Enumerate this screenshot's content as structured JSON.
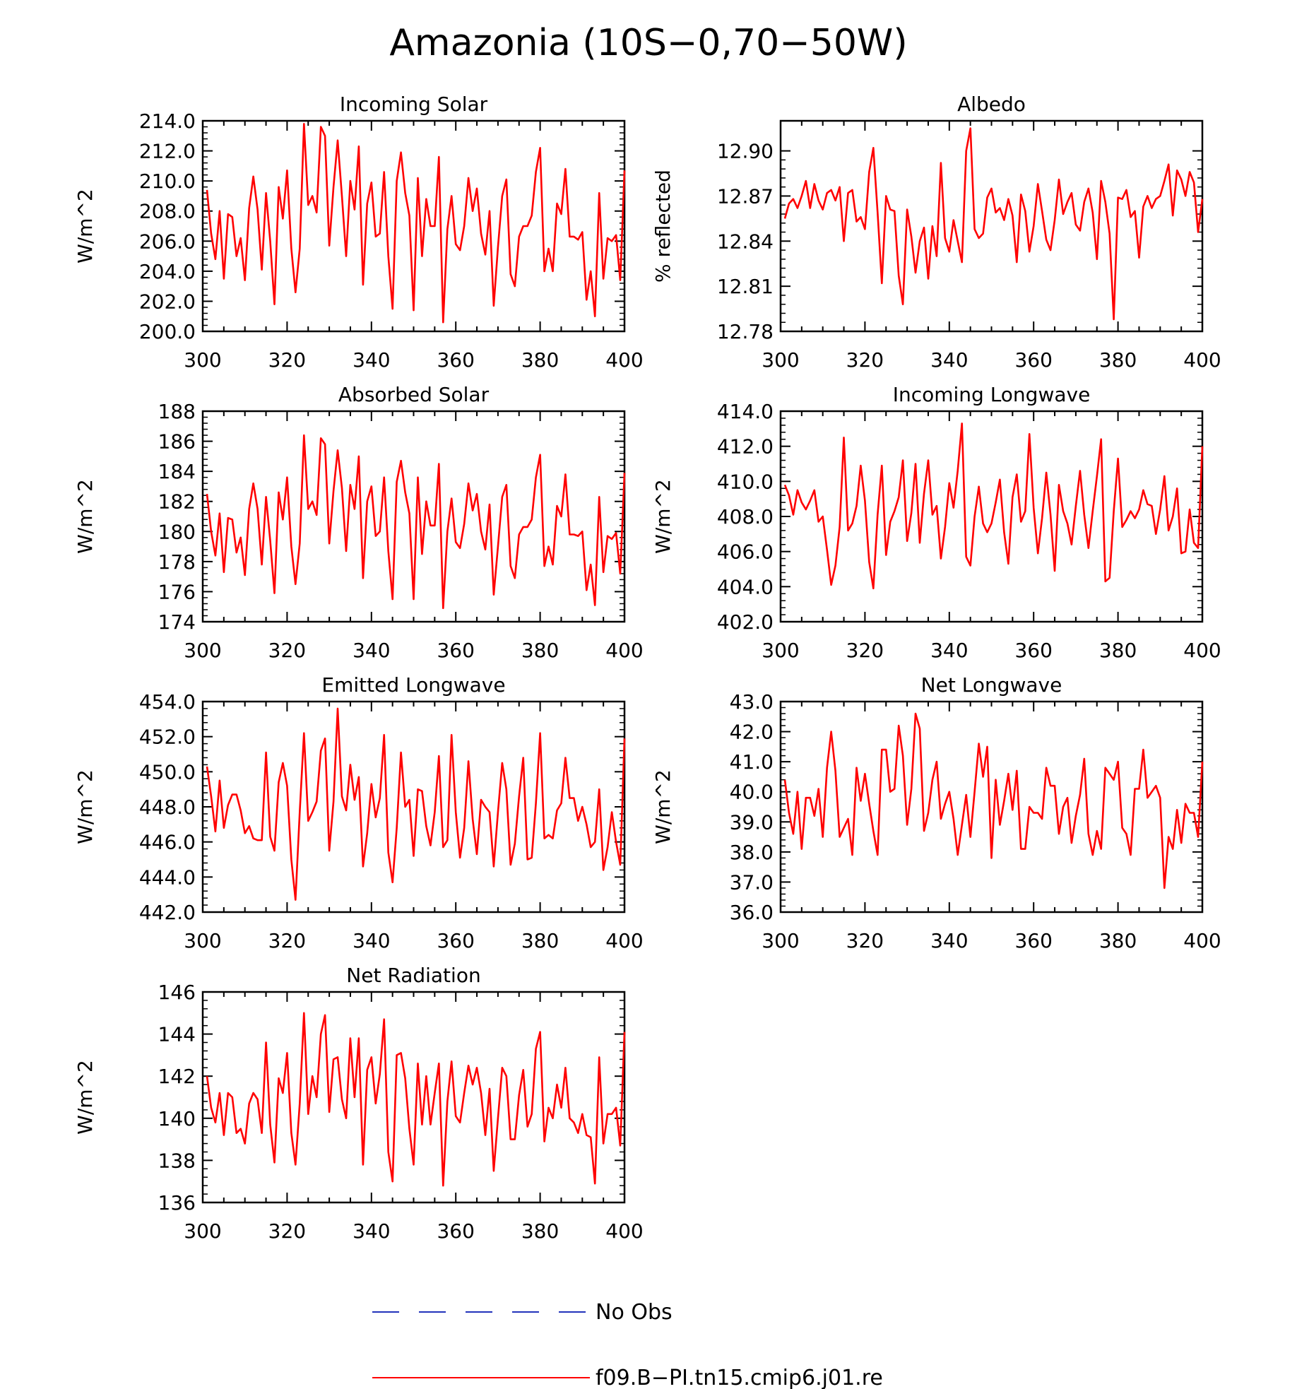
{
  "figure": {
    "title": "Amazonia (10S−0,70−50W)"
  },
  "legend": {
    "placement": "bottom",
    "entries": [
      {
        "label": "No Obs",
        "color": "#2233bb",
        "dashed": true
      },
      {
        "label": "f09.B−PI.tn15.cmip6.j01.re",
        "color": "#ff0000",
        "dashed": false
      }
    ]
  },
  "chart_data": [
    {
      "type": "line",
      "title": "Incoming Solar",
      "ylabel": "W/m^2",
      "xlim": [
        300,
        400
      ],
      "ylim": [
        200,
        214
      ],
      "xticks": [
        "300",
        "320",
        "340",
        "360",
        "380",
        "400"
      ],
      "yticks": [
        "200.0",
        "202.0",
        "204.0",
        "206.0",
        "208.0",
        "210.0",
        "212.0",
        "214.0"
      ],
      "series": [
        {
          "color": "#ff0000",
          "start_x": 301,
          "values": [
            209.4,
            206.5,
            204.8,
            208.0,
            203.5,
            207.8,
            207.6,
            205.0,
            206.2,
            203.4,
            208.2,
            210.3,
            208.1,
            204.1,
            209.2,
            206.0,
            201.8,
            209.6,
            207.5,
            210.7,
            205.5,
            202.6,
            205.5,
            213.8,
            208.4,
            209.0,
            207.9,
            213.6,
            213.0,
            205.7,
            209.6,
            212.7,
            209.0,
            205.0,
            210.0,
            208.1,
            212.3,
            203.1,
            208.5,
            209.9,
            206.3,
            206.5,
            210.6,
            205.0,
            201.5,
            210.0,
            211.9,
            209.2,
            207.7,
            201.4,
            210.2,
            205.0,
            208.8,
            207.0,
            207.0,
            211.6,
            200.6,
            206.8,
            209.0,
            205.8,
            205.4,
            207.0,
            210.2,
            208.0,
            209.5,
            206.5,
            205.1,
            208.0,
            201.7,
            205.6,
            209.0,
            210.1,
            203.8,
            203.0,
            206.3,
            207.0,
            207.0,
            207.7,
            210.6,
            212.2,
            204.0,
            205.5,
            204.0,
            208.5,
            207.8,
            210.8,
            206.3,
            206.3,
            206.1,
            206.6,
            202.1,
            204.0,
            201.0,
            209.2,
            203.5,
            206.2,
            206.0,
            206.4,
            203.4,
            210.7
          ]
        }
      ]
    },
    {
      "type": "line",
      "title": "Albedo",
      "ylabel": "% reflected",
      "xlim": [
        300,
        400
      ],
      "ylim": [
        12.78,
        12.92
      ],
      "xticks": [
        "300",
        "320",
        "340",
        "360",
        "380",
        "400"
      ],
      "yticks": [
        "12.78",
        "12.81",
        "12.84",
        "12.87",
        "12.90"
      ],
      "series": [
        {
          "color": "#ff0000",
          "start_x": 301,
          "values": [
            12.855,
            12.865,
            12.868,
            12.862,
            12.87,
            12.88,
            12.862,
            12.878,
            12.867,
            12.861,
            12.872,
            12.874,
            12.867,
            12.876,
            12.84,
            12.872,
            12.874,
            12.853,
            12.856,
            12.848,
            12.886,
            12.902,
            12.859,
            12.812,
            12.87,
            12.861,
            12.86,
            12.817,
            12.798,
            12.861,
            12.843,
            12.819,
            12.84,
            12.849,
            12.815,
            12.85,
            12.83,
            12.892,
            12.842,
            12.833,
            12.854,
            12.84,
            12.826,
            12.9,
            12.915,
            12.848,
            12.842,
            12.845,
            12.869,
            12.875,
            12.859,
            12.862,
            12.854,
            12.868,
            12.857,
            12.826,
            12.871,
            12.86,
            12.833,
            12.85,
            12.878,
            12.86,
            12.841,
            12.834,
            12.854,
            12.881,
            12.858,
            12.866,
            12.872,
            12.851,
            12.847,
            12.866,
            12.875,
            12.859,
            12.828,
            12.88,
            12.866,
            12.845,
            12.788,
            12.869,
            12.868,
            12.874,
            12.856,
            12.86,
            12.829,
            12.863,
            12.87,
            12.862,
            12.868,
            12.87,
            12.88,
            12.891,
            12.857,
            12.887,
            12.881,
            12.87,
            12.886,
            12.879,
            12.846,
            12.868
          ]
        }
      ]
    },
    {
      "type": "line",
      "title": "Absorbed Solar",
      "ylabel": "W/m^2",
      "xlim": [
        300,
        400
      ],
      "ylim": [
        174,
        188
      ],
      "xticks": [
        "300",
        "320",
        "340",
        "360",
        "380",
        "400"
      ],
      "yticks": [
        "174",
        "176",
        "178",
        "180",
        "182",
        "184",
        "186",
        "188"
      ],
      "series": [
        {
          "color": "#ff0000",
          "start_x": 301,
          "values": [
            182.5,
            180.0,
            178.4,
            181.2,
            177.3,
            180.9,
            180.8,
            178.6,
            179.6,
            177.1,
            181.5,
            183.2,
            181.5,
            177.8,
            182.3,
            179.4,
            175.9,
            182.6,
            180.8,
            183.6,
            179.0,
            176.5,
            179.2,
            186.4,
            181.5,
            182.0,
            181.1,
            186.2,
            185.8,
            179.2,
            182.7,
            185.4,
            182.9,
            178.7,
            183.1,
            181.5,
            185.0,
            176.9,
            182.0,
            183.0,
            179.7,
            180.0,
            183.6,
            178.7,
            175.5,
            183.3,
            184.7,
            182.6,
            181.2,
            175.5,
            183.6,
            178.5,
            182.0,
            180.4,
            180.4,
            184.5,
            174.9,
            180.0,
            182.2,
            179.3,
            178.9,
            180.5,
            183.2,
            181.4,
            182.5,
            180.0,
            178.8,
            181.8,
            175.8,
            179.0,
            182.3,
            183.1,
            177.7,
            176.9,
            179.8,
            180.3,
            180.3,
            180.8,
            183.6,
            185.1,
            177.7,
            179.0,
            177.8,
            181.7,
            181.0,
            183.8,
            179.8,
            179.8,
            179.7,
            180.0,
            176.1,
            177.8,
            175.1,
            182.3,
            177.3,
            179.7,
            179.5,
            179.9,
            177.2,
            183.9
          ]
        }
      ]
    },
    {
      "type": "line",
      "title": "Incoming Longwave",
      "ylabel": "W/m^2",
      "xlim": [
        300,
        400
      ],
      "ylim": [
        402,
        414
      ],
      "xticks": [
        "300",
        "320",
        "340",
        "360",
        "380",
        "400"
      ],
      "yticks": [
        "402.0",
        "404.0",
        "406.0",
        "408.0",
        "410.0",
        "412.0",
        "414.0"
      ],
      "series": [
        {
          "color": "#ff0000",
          "start_x": 301,
          "values": [
            409.8,
            409.2,
            408.1,
            409.5,
            408.8,
            408.4,
            408.9,
            409.5,
            407.7,
            408.0,
            406.1,
            404.1,
            405.2,
            407.4,
            412.5,
            407.2,
            407.6,
            408.6,
            410.9,
            408.9,
            405.4,
            403.9,
            408.1,
            410.9,
            405.8,
            407.7,
            408.3,
            409.1,
            411.2,
            406.6,
            408.2,
            411.0,
            406.5,
            409.3,
            411.2,
            408.1,
            408.6,
            405.6,
            407.4,
            409.9,
            408.5,
            410.6,
            413.3,
            405.7,
            405.2,
            408.0,
            409.7,
            407.6,
            407.1,
            407.6,
            408.8,
            410.1,
            407.1,
            405.3,
            409.1,
            410.4,
            407.7,
            408.3,
            412.7,
            408.5,
            405.9,
            407.9,
            410.5,
            408.1,
            404.9,
            409.8,
            408.3,
            407.6,
            406.4,
            408.6,
            410.6,
            408.1,
            406.2,
            408.3,
            410.3,
            412.4,
            404.3,
            404.5,
            408.3,
            411.3,
            407.4,
            407.8,
            408.3,
            407.9,
            408.4,
            409.5,
            408.7,
            408.6,
            407.0,
            408.4,
            410.3,
            407.2,
            408.0,
            409.6,
            405.9,
            406.0,
            408.4,
            406.5,
            406.2,
            412.0
          ]
        }
      ]
    },
    {
      "type": "line",
      "title": "Emitted Longwave",
      "ylabel": "W/m^2",
      "xlim": [
        300,
        400
      ],
      "ylim": [
        442,
        454
      ],
      "xticks": [
        "300",
        "320",
        "340",
        "360",
        "380",
        "400"
      ],
      "yticks": [
        "442.0",
        "444.0",
        "446.0",
        "448.0",
        "450.0",
        "452.0",
        "454.0"
      ],
      "series": [
        {
          "color": "#ff0000",
          "start_x": 301,
          "values": [
            450.3,
            448.6,
            446.6,
            449.5,
            446.8,
            448.1,
            448.7,
            448.7,
            447.8,
            446.5,
            446.9,
            446.2,
            446.1,
            446.1,
            451.1,
            446.3,
            445.5,
            449.4,
            450.5,
            449.2,
            445.0,
            442.7,
            447.7,
            452.2,
            447.2,
            447.7,
            448.3,
            451.2,
            451.9,
            445.5,
            448.3,
            453.6,
            448.6,
            447.8,
            450.4,
            448.4,
            449.7,
            444.6,
            446.5,
            449.3,
            447.4,
            448.5,
            452.1,
            445.4,
            443.7,
            446.8,
            451.1,
            448.0,
            448.4,
            445.2,
            449.0,
            448.9,
            446.9,
            445.8,
            447.7,
            450.9,
            445.7,
            446.1,
            452.1,
            447.7,
            445.1,
            446.8,
            450.6,
            447.3,
            445.3,
            448.4,
            448.0,
            447.7,
            444.6,
            447.7,
            450.5,
            449.0,
            444.7,
            445.9,
            448.6,
            450.8,
            445.0,
            445.1,
            448.2,
            452.2,
            446.2,
            446.4,
            446.2,
            447.8,
            448.2,
            450.8,
            448.5,
            448.5,
            447.2,
            448.0,
            447.0,
            445.7,
            446.0,
            449.0,
            444.4,
            445.7,
            447.7,
            446.0,
            444.7,
            451.9
          ]
        }
      ]
    },
    {
      "type": "line",
      "title": "Net Longwave",
      "ylabel": "W/m^2",
      "xlim": [
        300,
        400
      ],
      "ylim": [
        36,
        43
      ],
      "xticks": [
        "300",
        "320",
        "340",
        "360",
        "380",
        "400"
      ],
      "yticks": [
        "36.0",
        "37.0",
        "38.0",
        "39.0",
        "40.0",
        "41.0",
        "42.0",
        "43.0"
      ],
      "series": [
        {
          "color": "#ff0000",
          "start_x": 301,
          "values": [
            40.4,
            39.3,
            38.6,
            40.0,
            38.1,
            39.8,
            39.8,
            39.2,
            40.1,
            38.5,
            40.8,
            42.0,
            40.7,
            38.5,
            38.8,
            39.1,
            37.9,
            40.8,
            39.7,
            40.6,
            39.6,
            38.7,
            37.9,
            41.4,
            41.4,
            40.0,
            40.1,
            42.2,
            41.2,
            38.9,
            40.1,
            42.6,
            42.1,
            38.7,
            39.3,
            40.4,
            41.0,
            39.1,
            39.6,
            40.0,
            39.1,
            37.9,
            38.9,
            39.9,
            38.5,
            40.0,
            41.6,
            40.5,
            41.5,
            37.8,
            40.4,
            38.9,
            39.7,
            40.6,
            39.4,
            40.7,
            38.1,
            38.1,
            39.5,
            39.3,
            39.3,
            39.1,
            40.8,
            40.2,
            40.2,
            38.6,
            39.5,
            39.8,
            38.3,
            39.2,
            39.9,
            41.1,
            38.6,
            37.9,
            38.7,
            38.1,
            40.8,
            40.6,
            40.4,
            41.0,
            38.8,
            38.6,
            37.9,
            40.1,
            40.1,
            41.4,
            39.8,
            40.0,
            40.2,
            39.8,
            36.8,
            38.5,
            38.1,
            39.4,
            38.3,
            39.6,
            39.3,
            39.3,
            38.5,
            41.0
          ]
        }
      ]
    },
    {
      "type": "line",
      "title": "Net Radiation",
      "ylabel": "W/m^2",
      "xlim": [
        300,
        400
      ],
      "ylim": [
        136,
        146
      ],
      "xticks": [
        "300",
        "320",
        "340",
        "360",
        "380",
        "400"
      ],
      "yticks": [
        "136",
        "138",
        "140",
        "142",
        "144",
        "146"
      ],
      "series": [
        {
          "color": "#ff0000",
          "start_x": 301,
          "values": [
            142.0,
            140.5,
            139.8,
            141.2,
            139.2,
            141.2,
            141.0,
            139.3,
            139.5,
            138.8,
            140.7,
            141.2,
            140.9,
            139.3,
            143.6,
            139.7,
            137.9,
            141.9,
            141.2,
            143.1,
            139.3,
            137.8,
            140.7,
            145.0,
            140.2,
            142.0,
            141.0,
            144.0,
            144.9,
            140.3,
            142.8,
            142.9,
            140.9,
            140.0,
            143.8,
            141.0,
            143.8,
            137.8,
            142.3,
            142.9,
            140.7,
            142.1,
            144.7,
            138.4,
            137.0,
            143.0,
            143.1,
            141.9,
            139.5,
            137.8,
            142.6,
            139.7,
            142.0,
            139.7,
            141.2,
            142.6,
            136.8,
            140.8,
            142.7,
            140.1,
            139.8,
            141.2,
            142.5,
            141.6,
            142.4,
            141.2,
            139.2,
            141.4,
            137.5,
            140.0,
            142.4,
            142.0,
            139.0,
            139.0,
            141.1,
            142.3,
            139.6,
            140.2,
            143.3,
            144.1,
            138.9,
            140.5,
            140.0,
            141.6,
            140.5,
            142.4,
            140.0,
            139.8,
            139.3,
            140.2,
            139.2,
            139.1,
            136.9,
            142.9,
            138.8,
            140.2,
            140.2,
            140.5,
            138.7,
            144.1
          ]
        }
      ]
    }
  ]
}
